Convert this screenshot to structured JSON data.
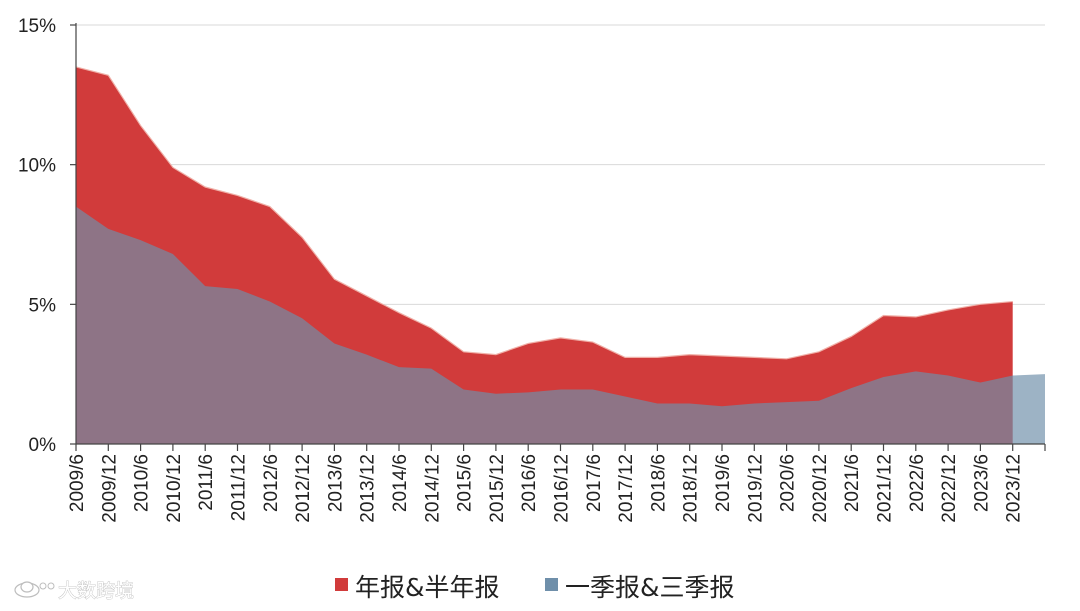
{
  "chart_data": {
    "type": "area",
    "title": "",
    "xlabel": "",
    "ylabel": "",
    "categories": [
      "2009/6",
      "2009/12",
      "2010/6",
      "2010/12",
      "2011/6",
      "2011/12",
      "2012/6",
      "2012/12",
      "2013/6",
      "2013/12",
      "2014/6",
      "2014/12",
      "2015/6",
      "2015/12",
      "2016/6",
      "2016/12",
      "2017/6",
      "2017/12",
      "2018/6",
      "2018/12",
      "2019/6",
      "2019/12",
      "2020/6",
      "2020/12",
      "2021/6",
      "2021/12",
      "2022/6",
      "2022/12",
      "2023/6",
      "2023/12",
      ""
    ],
    "ylim": [
      0,
      15
    ],
    "yticks": [
      0,
      5,
      10,
      15
    ],
    "ytick_labels": [
      "0%",
      "5%",
      "10%",
      "15%"
    ],
    "y_unit": "%",
    "grid": true,
    "legend_position": "bottom",
    "series": [
      {
        "name": "年报&半年报",
        "color": "#d13b3b",
        "values": [
          13.5,
          13.2,
          11.4,
          9.9,
          9.2,
          8.9,
          8.5,
          7.4,
          5.9,
          5.3,
          4.7,
          4.15,
          3.3,
          3.2,
          3.6,
          3.8,
          3.65,
          3.1,
          3.1,
          3.2,
          3.15,
          3.1,
          3.05,
          3.3,
          3.85,
          4.6,
          4.55,
          4.8,
          5.0,
          5.1,
          null
        ]
      },
      {
        "name": "一季报&三季报",
        "color": "#6f8faa",
        "values": [
          8.5,
          7.7,
          7.3,
          6.8,
          5.65,
          5.55,
          5.1,
          4.5,
          3.6,
          3.2,
          2.75,
          2.7,
          1.95,
          1.8,
          1.85,
          1.95,
          1.95,
          1.7,
          1.45,
          1.45,
          1.35,
          1.45,
          1.5,
          1.55,
          2.0,
          2.4,
          2.6,
          2.45,
          2.2,
          2.45,
          2.5
        ]
      }
    ]
  },
  "watermark": {
    "text": "大数跨境",
    "logo_icon": "ufo-logo-icon"
  }
}
